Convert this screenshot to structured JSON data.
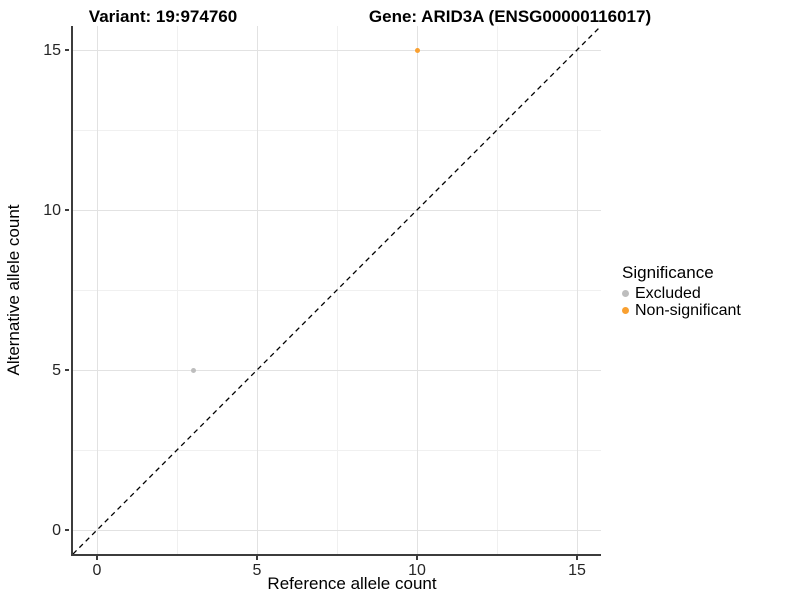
{
  "chart_data": {
    "type": "scatter",
    "title_variant": "Variant: 19:974760",
    "title_gene": "Gene: ARID3A (ENSG00000116017)",
    "xlabel": "Reference allele count",
    "ylabel": "Alternative allele count",
    "xlim": [
      -0.75,
      15.75
    ],
    "ylim": [
      -0.75,
      15.75
    ],
    "xticks": [
      0,
      5,
      10,
      15
    ],
    "yticks": [
      0,
      5,
      10,
      15
    ],
    "xticks_minor": [
      2.5,
      7.5,
      12.5
    ],
    "yticks_minor": [
      2.5,
      7.5,
      12.5
    ],
    "grid": "major+minor",
    "identity_line": {
      "slope": 1,
      "intercept": 0,
      "style": "dashed",
      "color": "#000000"
    },
    "legend_title": "Significance",
    "legend_position": "right",
    "series": [
      {
        "name": "Excluded",
        "color": "#BDBDBD",
        "points": [
          [
            3,
            5
          ]
        ]
      },
      {
        "name": "Non-significant",
        "color": "#F9A030",
        "points": [
          [
            10,
            15
          ]
        ]
      }
    ]
  },
  "colors": {
    "grid_major": "#E2E2E2",
    "grid_minor": "#F0F0F0",
    "axis_line": "#3c3c3c"
  }
}
